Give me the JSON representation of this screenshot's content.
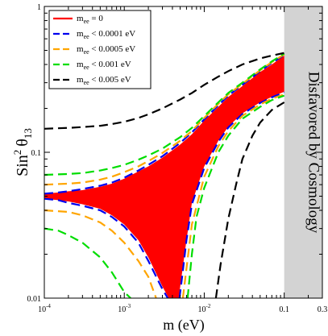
{
  "chart_data": {
    "type": "area",
    "x_axis": {
      "label": "m (eV)",
      "scale": "log",
      "range": [
        0.0001,
        0.3
      ],
      "ticks": [
        {
          "value": 0.0001,
          "base": "10",
          "exp": "-4"
        },
        {
          "value": 0.001,
          "base": "10",
          "exp": "-3"
        },
        {
          "value": 0.01,
          "base": "10",
          "exp": "-2"
        },
        {
          "value": 0.1,
          "base": "0.1",
          "exp": ""
        },
        {
          "value": 0.3,
          "base": "0.3",
          "exp": ""
        }
      ]
    },
    "y_axis": {
      "label_main": "Sin",
      "label_sup": "2",
      "label_theta": "θ",
      "label_sub": "13",
      "scale": "log",
      "range": [
        0.01,
        1
      ],
      "ticks": [
        {
          "value": 0.01,
          "label": "0.01"
        },
        {
          "value": 0.1,
          "label": "0.1"
        },
        {
          "value": 1,
          "label": "1"
        }
      ]
    },
    "disfavored_region": {
      "x_range": [
        0.1,
        0.3
      ],
      "label": "Disfavored by Cosmology",
      "color": "#d3d3d3"
    },
    "legend": [
      {
        "pre": "m",
        "sub": "ee",
        "post": " = 0",
        "color": "#ff0000",
        "dash": "solid"
      },
      {
        "pre": "m",
        "sub": "ee",
        "post": " < 0.0001 eV",
        "color": "#0000ee",
        "dash": "dashed"
      },
      {
        "pre": "m",
        "sub": "ee",
        "post": " < 0.0005 eV",
        "color": "#ffa500",
        "dash": "dashed"
      },
      {
        "pre": "m",
        "sub": "ee",
        "post": " < 0.001 eV",
        "color": "#00dd00",
        "dash": "dashed"
      },
      {
        "pre": "m",
        "sub": "ee",
        "post": " < 0.005 eV",
        "color": "#000000",
        "dash": "dashed"
      }
    ],
    "series": [
      {
        "name": "mee = 0",
        "type": "band",
        "color": "#ff0000",
        "upper": [
          [
            0.0001,
            0.052
          ],
          [
            0.00015,
            0.053
          ],
          [
            0.0002,
            0.054
          ],
          [
            0.0003,
            0.055
          ],
          [
            0.0005,
            0.058
          ],
          [
            0.0007,
            0.061
          ],
          [
            0.001,
            0.066
          ],
          [
            0.0015,
            0.074
          ],
          [
            0.002,
            0.08
          ],
          [
            0.003,
            0.092
          ],
          [
            0.005,
            0.113
          ],
          [
            0.007,
            0.133
          ],
          [
            0.01,
            0.165
          ],
          [
            0.015,
            0.205
          ],
          [
            0.02,
            0.24
          ],
          [
            0.03,
            0.285
          ],
          [
            0.05,
            0.355
          ],
          [
            0.07,
            0.4
          ],
          [
            0.1,
            0.46
          ]
        ],
        "lower": [
          [
            0.0001,
            0.048
          ],
          [
            0.00015,
            0.047
          ],
          [
            0.0002,
            0.046
          ],
          [
            0.0003,
            0.044
          ],
          [
            0.0005,
            0.041
          ],
          [
            0.0007,
            0.037
          ],
          [
            0.001,
            0.032
          ],
          [
            0.0015,
            0.025
          ],
          [
            0.002,
            0.019
          ],
          [
            0.003,
            0.012
          ],
          [
            0.0036,
            0.01
          ],
          [
            0.0048,
            0.01
          ],
          [
            0.005,
            0.012
          ],
          [
            0.006,
            0.025
          ],
          [
            0.007,
            0.045
          ],
          [
            0.01,
            0.08
          ],
          [
            0.015,
            0.12
          ],
          [
            0.02,
            0.15
          ],
          [
            0.03,
            0.185
          ],
          [
            0.05,
            0.22
          ],
          [
            0.07,
            0.24
          ],
          [
            0.1,
            0.26
          ]
        ]
      },
      {
        "name": "mee < 0.0001 eV",
        "type": "contour",
        "color": "#0000ee",
        "upper": [
          [
            0.0001,
            0.052
          ],
          [
            0.00015,
            0.053
          ],
          [
            0.0002,
            0.054
          ],
          [
            0.0003,
            0.056
          ],
          [
            0.0005,
            0.059
          ],
          [
            0.0007,
            0.062
          ],
          [
            0.001,
            0.067
          ],
          [
            0.0015,
            0.075
          ],
          [
            0.002,
            0.082
          ],
          [
            0.003,
            0.094
          ],
          [
            0.005,
            0.116
          ],
          [
            0.007,
            0.137
          ],
          [
            0.01,
            0.168
          ],
          [
            0.015,
            0.21
          ],
          [
            0.02,
            0.245
          ],
          [
            0.03,
            0.29
          ],
          [
            0.05,
            0.36
          ],
          [
            0.07,
            0.41
          ],
          [
            0.1,
            0.465
          ]
        ],
        "lower": [
          [
            0.0001,
            0.048
          ],
          [
            0.00015,
            0.047
          ],
          [
            0.0002,
            0.045
          ],
          [
            0.0003,
            0.043
          ],
          [
            0.0005,
            0.04
          ],
          [
            0.0007,
            0.036
          ],
          [
            0.001,
            0.031
          ],
          [
            0.0015,
            0.024
          ],
          [
            0.002,
            0.018
          ],
          [
            0.003,
            0.0115
          ],
          [
            0.0035,
            0.01
          ]
        ],
        "lower2": [
          [
            0.0049,
            0.01
          ],
          [
            0.0052,
            0.013
          ],
          [
            0.006,
            0.025
          ],
          [
            0.007,
            0.044
          ],
          [
            0.01,
            0.078
          ],
          [
            0.015,
            0.118
          ],
          [
            0.02,
            0.148
          ],
          [
            0.03,
            0.183
          ],
          [
            0.05,
            0.218
          ],
          [
            0.07,
            0.238
          ],
          [
            0.1,
            0.258
          ]
        ]
      },
      {
        "name": "mee < 0.0005 eV",
        "type": "contour",
        "color": "#ffa500",
        "upper": [
          [
            0.0001,
            0.06
          ],
          [
            0.0002,
            0.061
          ],
          [
            0.0003,
            0.062
          ],
          [
            0.0005,
            0.065
          ],
          [
            0.0007,
            0.068
          ],
          [
            0.001,
            0.073
          ],
          [
            0.0015,
            0.08
          ],
          [
            0.002,
            0.087
          ],
          [
            0.003,
            0.099
          ],
          [
            0.005,
            0.12
          ],
          [
            0.007,
            0.14
          ],
          [
            0.01,
            0.172
          ],
          [
            0.015,
            0.215
          ],
          [
            0.02,
            0.25
          ],
          [
            0.03,
            0.295
          ],
          [
            0.05,
            0.365
          ],
          [
            0.07,
            0.415
          ],
          [
            0.1,
            0.47
          ]
        ],
        "lower": [
          [
            0.0001,
            0.04
          ],
          [
            0.0002,
            0.039
          ],
          [
            0.0003,
            0.037
          ],
          [
            0.0005,
            0.033
          ],
          [
            0.0007,
            0.029
          ],
          [
            0.001,
            0.024
          ],
          [
            0.0015,
            0.018
          ],
          [
            0.002,
            0.014
          ],
          [
            0.0025,
            0.01
          ]
        ],
        "lower2": [
          [
            0.0054,
            0.01
          ],
          [
            0.006,
            0.016
          ],
          [
            0.007,
            0.032
          ],
          [
            0.01,
            0.068
          ],
          [
            0.015,
            0.11
          ],
          [
            0.02,
            0.14
          ],
          [
            0.03,
            0.178
          ],
          [
            0.05,
            0.213
          ],
          [
            0.07,
            0.233
          ],
          [
            0.1,
            0.25
          ]
        ]
      },
      {
        "name": "mee < 0.001 eV",
        "type": "contour",
        "color": "#00dd00",
        "upper": [
          [
            0.0001,
            0.07
          ],
          [
            0.0002,
            0.071
          ],
          [
            0.0003,
            0.072
          ],
          [
            0.0005,
            0.075
          ],
          [
            0.0007,
            0.078
          ],
          [
            0.001,
            0.082
          ],
          [
            0.0015,
            0.089
          ],
          [
            0.002,
            0.095
          ],
          [
            0.003,
            0.106
          ],
          [
            0.005,
            0.127
          ],
          [
            0.007,
            0.147
          ],
          [
            0.01,
            0.177
          ],
          [
            0.015,
            0.22
          ],
          [
            0.02,
            0.255
          ],
          [
            0.03,
            0.3
          ],
          [
            0.05,
            0.37
          ],
          [
            0.07,
            0.42
          ],
          [
            0.1,
            0.475
          ]
        ],
        "lower": [
          [
            0.0001,
            0.03
          ],
          [
            0.00015,
            0.029
          ],
          [
            0.0002,
            0.027
          ],
          [
            0.0003,
            0.024
          ],
          [
            0.0005,
            0.019
          ],
          [
            0.0007,
            0.015
          ],
          [
            0.001,
            0.011
          ],
          [
            0.0012,
            0.01
          ]
        ],
        "lower2": [
          [
            0.0062,
            0.01
          ],
          [
            0.007,
            0.02
          ],
          [
            0.008,
            0.036
          ],
          [
            0.01,
            0.057
          ],
          [
            0.015,
            0.1
          ],
          [
            0.02,
            0.13
          ],
          [
            0.03,
            0.17
          ],
          [
            0.05,
            0.205
          ],
          [
            0.07,
            0.228
          ],
          [
            0.1,
            0.245
          ]
        ]
      },
      {
        "name": "mee < 0.005 eV",
        "type": "contour",
        "color": "#000000",
        "upper": [
          [
            0.0001,
            0.145
          ],
          [
            0.0002,
            0.147
          ],
          [
            0.0003,
            0.149
          ],
          [
            0.0005,
            0.152
          ],
          [
            0.0007,
            0.156
          ],
          [
            0.001,
            0.162
          ],
          [
            0.0015,
            0.172
          ],
          [
            0.002,
            0.182
          ],
          [
            0.003,
            0.2
          ],
          [
            0.005,
            0.23
          ],
          [
            0.007,
            0.255
          ],
          [
            0.01,
            0.29
          ],
          [
            0.015,
            0.33
          ],
          [
            0.02,
            0.36
          ],
          [
            0.03,
            0.4
          ],
          [
            0.05,
            0.44
          ],
          [
            0.07,
            0.46
          ],
          [
            0.1,
            0.48
          ]
        ],
        "lower2": [
          [
            0.014,
            0.01
          ],
          [
            0.016,
            0.017
          ],
          [
            0.02,
            0.035
          ],
          [
            0.025,
            0.06
          ],
          [
            0.03,
            0.09
          ],
          [
            0.04,
            0.13
          ],
          [
            0.05,
            0.16
          ],
          [
            0.07,
            0.195
          ],
          [
            0.1,
            0.22
          ]
        ]
      }
    ]
  }
}
